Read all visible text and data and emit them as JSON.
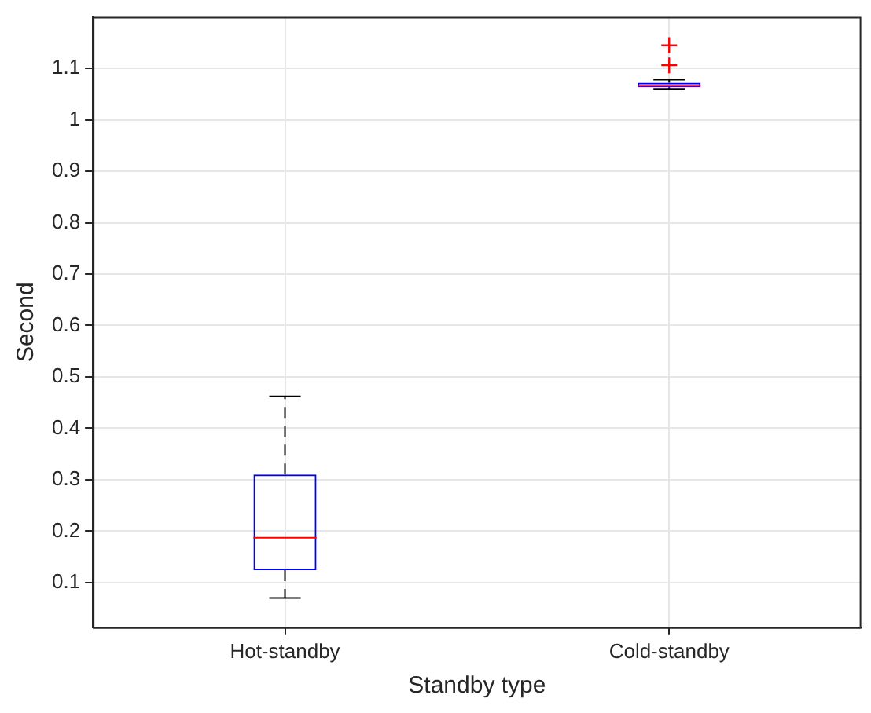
{
  "chart_data": {
    "type": "box",
    "xlabel": "Standby type",
    "ylabel": "Second",
    "categories": [
      "Hot-standby",
      "Cold-standby"
    ],
    "boxes": [
      {
        "low": 0.07,
        "q1": 0.124,
        "median": 0.187,
        "q3": 0.31,
        "high": 0.462
      },
      {
        "low": 1.06,
        "q1": 1.063,
        "median": 1.066,
        "q3": 1.072,
        "high": 1.078,
        "outliers": [
          1.106,
          1.145
        ]
      }
    ],
    "color": "#0000ff",
    "ylim": [
      0.013,
      1.2
    ],
    "yticks": [
      0.1,
      0.2,
      0.3,
      0.4,
      0.5,
      0.6,
      0.7,
      0.8,
      0.9,
      1,
      1.1
    ],
    "grid": true
  }
}
